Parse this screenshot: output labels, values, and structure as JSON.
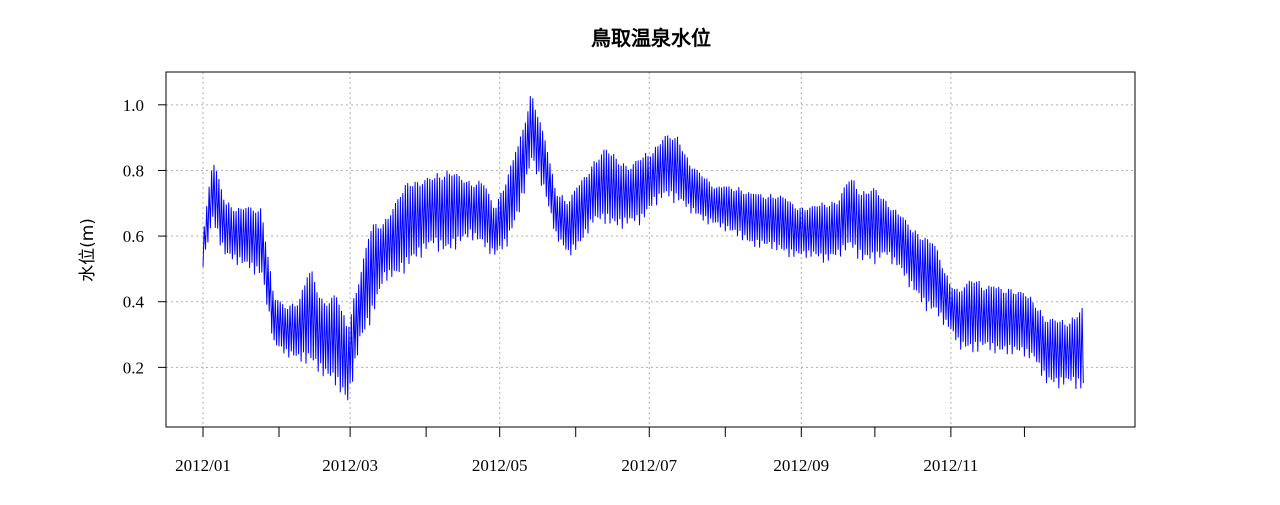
{
  "chart_data": {
    "type": "line",
    "title": "鳥取温泉水位",
    "xlabel": "",
    "ylabel": "水位(m)",
    "xlim": [
      "2012-01-01",
      "2012-12-31"
    ],
    "ylim": [
      0.0,
      1.1
    ],
    "grid": true,
    "line_color": "#0000ff",
    "x_ticks": [
      "2012-01-01",
      "2012-02-01",
      "2012-03-01",
      "2012-04-01",
      "2012-05-01",
      "2012-06-01",
      "2012-07-01",
      "2012-08-01",
      "2012-09-01",
      "2012-10-01",
      "2012-11-01",
      "2012-12-01"
    ],
    "x_tick_labels": [
      {
        "date": "2012-01-01",
        "label": "2012/01"
      },
      {
        "date": "2012-03-01",
        "label": "2012/03"
      },
      {
        "date": "2012-05-01",
        "label": "2012/05"
      },
      {
        "date": "2012-07-01",
        "label": "2012/07"
      },
      {
        "date": "2012-09-01",
        "label": "2012/09"
      },
      {
        "date": "2012-11-01",
        "label": "2012/11"
      }
    ],
    "y_ticks": [
      0.2,
      0.4,
      0.6,
      0.8,
      1.0
    ],
    "y_tick_labels": [
      "0.2",
      "0.4",
      "0.6",
      "0.8",
      "1.0"
    ],
    "daily": {
      "x": [
        "2012-01-01",
        "2012-01-05",
        "2012-01-10",
        "2012-01-15",
        "2012-01-20",
        "2012-01-25",
        "2012-01-30",
        "2012-02-04",
        "2012-02-09",
        "2012-02-14",
        "2012-02-19",
        "2012-02-24",
        "2012-02-29",
        "2012-03-05",
        "2012-03-10",
        "2012-03-15",
        "2012-03-20",
        "2012-03-25",
        "2012-03-30",
        "2012-04-04",
        "2012-04-09",
        "2012-04-14",
        "2012-04-19",
        "2012-04-24",
        "2012-04-29",
        "2012-05-04",
        "2012-05-09",
        "2012-05-14",
        "2012-05-19",
        "2012-05-24",
        "2012-05-29",
        "2012-06-03",
        "2012-06-08",
        "2012-06-13",
        "2012-06-18",
        "2012-06-23",
        "2012-06-28",
        "2012-07-03",
        "2012-07-08",
        "2012-07-13",
        "2012-07-18",
        "2012-07-23",
        "2012-07-28",
        "2012-08-02",
        "2012-08-07",
        "2012-08-12",
        "2012-08-17",
        "2012-08-22",
        "2012-08-27",
        "2012-09-01",
        "2012-09-06",
        "2012-09-11",
        "2012-09-16",
        "2012-09-21",
        "2012-09-26",
        "2012-10-01",
        "2012-10-06",
        "2012-10-11",
        "2012-10-16",
        "2012-10-21",
        "2012-10-26",
        "2012-10-31",
        "2012-11-05",
        "2012-11-10",
        "2012-11-15",
        "2012-11-20",
        "2012-11-25",
        "2012-11-30",
        "2012-12-05",
        "2012-12-10",
        "2012-12-15",
        "2012-12-20",
        "2012-12-25"
      ],
      "min": [
        0.5,
        0.62,
        0.52,
        0.5,
        0.48,
        0.45,
        0.25,
        0.22,
        0.2,
        0.18,
        0.15,
        0.12,
        0.06,
        0.25,
        0.32,
        0.45,
        0.45,
        0.48,
        0.52,
        0.55,
        0.52,
        0.55,
        0.58,
        0.55,
        0.52,
        0.55,
        0.65,
        0.8,
        0.72,
        0.58,
        0.52,
        0.55,
        0.62,
        0.62,
        0.6,
        0.62,
        0.62,
        0.68,
        0.7,
        0.68,
        0.66,
        0.63,
        0.62,
        0.6,
        0.58,
        0.55,
        0.55,
        0.54,
        0.52,
        0.52,
        0.52,
        0.5,
        0.52,
        0.54,
        0.5,
        0.5,
        0.52,
        0.48,
        0.42,
        0.36,
        0.34,
        0.3,
        0.24,
        0.22,
        0.24,
        0.22,
        0.22,
        0.22,
        0.2,
        0.13,
        0.12,
        0.13,
        0.1
      ],
      "max": [
        0.62,
        0.85,
        0.72,
        0.7,
        0.7,
        0.7,
        0.42,
        0.4,
        0.42,
        0.52,
        0.42,
        0.44,
        0.35,
        0.5,
        0.66,
        0.66,
        0.72,
        0.8,
        0.78,
        0.8,
        0.82,
        0.8,
        0.78,
        0.78,
        0.7,
        0.8,
        0.9,
        1.06,
        0.92,
        0.75,
        0.72,
        0.78,
        0.84,
        0.88,
        0.86,
        0.82,
        0.86,
        0.88,
        0.92,
        0.92,
        0.82,
        0.8,
        0.76,
        0.76,
        0.76,
        0.74,
        0.74,
        0.74,
        0.72,
        0.7,
        0.7,
        0.72,
        0.72,
        0.8,
        0.75,
        0.76,
        0.72,
        0.68,
        0.64,
        0.62,
        0.58,
        0.48,
        0.44,
        0.5,
        0.46,
        0.46,
        0.46,
        0.44,
        0.42,
        0.36,
        0.36,
        0.36,
        0.4
      ]
    }
  }
}
